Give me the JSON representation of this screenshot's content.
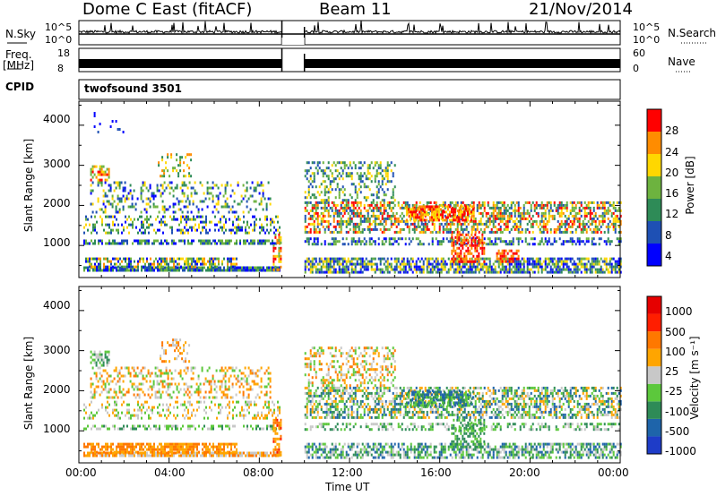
{
  "header": {
    "radar": "Dome C East (fitACF)",
    "beam": "Beam 11",
    "date": "21/Nov/2014"
  },
  "strips": {
    "nsky_label": "N.Sky",
    "nsky_ticks": [
      "10^5",
      "10^0"
    ],
    "nsearch_label": "N.Search",
    "freq_label": "Freq.",
    "freq_unit": "[MHz]",
    "freq_ticks": [
      "18",
      "8"
    ],
    "nave_label": "Nave",
    "nave_ticks": [
      "60",
      "0"
    ],
    "cpid_label": "CPID",
    "cpid_value": "twofsound 3501"
  },
  "axes": {
    "ylabel": "Slant Range [km]",
    "xlabel": "Time UT",
    "x_ticks": [
      "00:00",
      "04:00",
      "08:00",
      "12:00",
      "16:00",
      "20:00",
      "00:00"
    ],
    "y_ticks": [
      "4000",
      "3000",
      "2000",
      "1000"
    ]
  },
  "chart_data": [
    {
      "type": "heatmap",
      "name": "Power",
      "colorbar_label": "Power [dB]",
      "colorbar_ticks": [
        "28",
        "24",
        "20",
        "16",
        "12",
        "8",
        "4"
      ],
      "colorbar_colors": [
        "#0000ff",
        "#1e50b4",
        "#2e8b57",
        "#6db33f",
        "#ffd700",
        "#ff8c00",
        "#ff0000"
      ],
      "x_range_hours": [
        0,
        24
      ],
      "y_range_km": [
        200,
        4600
      ],
      "data_gap_hours": [
        9.0,
        10.0
      ]
    },
    {
      "type": "heatmap",
      "name": "Velocity",
      "colorbar_label": "Velocity [m s⁻¹]",
      "colorbar_ticks": [
        "1000",
        "500",
        "100",
        "25",
        "-25",
        "-100",
        "-500",
        "-1000"
      ],
      "colorbar_colors": [
        "#1e3cc8",
        "#1e64aa",
        "#2e8b57",
        "#5cc83c",
        "#c8c8c8",
        "#ffa500",
        "#ff7800",
        "#ff1e00",
        "#e60000"
      ],
      "x_range_hours": [
        0,
        24
      ],
      "y_range_km": [
        200,
        4600
      ],
      "data_gap_hours": [
        9.0,
        10.0
      ]
    }
  ]
}
